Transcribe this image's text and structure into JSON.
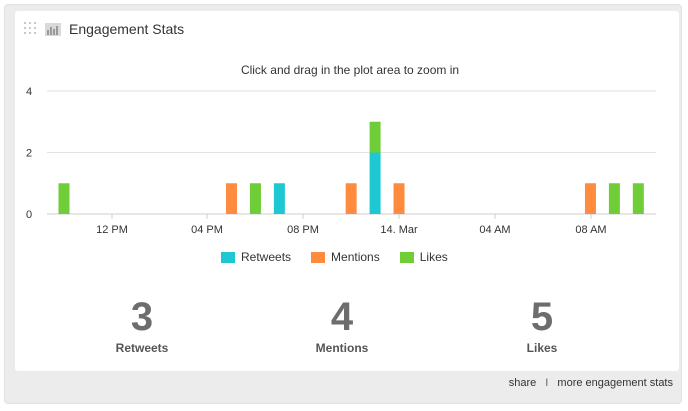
{
  "widget": {
    "title": "Engagement Stats",
    "hint": "Click and drag in the plot area to zoom in"
  },
  "chart_data": {
    "type": "bar",
    "stacked": true,
    "x_ticks": [
      "12 PM",
      "04 PM",
      "08 PM",
      "14. Mar",
      "04 AM",
      "08 AM"
    ],
    "y_ticks": [
      "4",
      "2",
      "0"
    ],
    "ylim": [
      0,
      4
    ],
    "grid": true,
    "legend_placement": "bottom-center",
    "series": [
      {
        "name": "Retweets",
        "color": "#1ec8d2",
        "points": [
          {
            "slot": 9,
            "value": 1
          },
          {
            "slot": 13,
            "value": 2
          }
        ]
      },
      {
        "name": "Mentions",
        "color": "#ff8c3e",
        "points": [
          {
            "slot": 7,
            "value": 1
          },
          {
            "slot": 12,
            "value": 1
          },
          {
            "slot": 14,
            "value": 1
          },
          {
            "slot": 22,
            "value": 1
          }
        ]
      },
      {
        "name": "Likes",
        "color": "#6fce37",
        "points": [
          {
            "slot": 0,
            "value": 1
          },
          {
            "slot": 8,
            "value": 1
          },
          {
            "slot": 13,
            "value": 1
          },
          {
            "slot": 23,
            "value": 1
          },
          {
            "slot": 24,
            "value": 1
          }
        ]
      }
    ]
  },
  "legend": [
    {
      "label": "Retweets",
      "color": "#1ec8d2"
    },
    {
      "label": "Mentions",
      "color": "#ff8c3e"
    },
    {
      "label": "Likes",
      "color": "#6fce37"
    }
  ],
  "stats": [
    {
      "value": "3",
      "label": "Retweets"
    },
    {
      "value": "4",
      "label": "Mentions"
    },
    {
      "value": "5",
      "label": "Likes"
    }
  ],
  "footer": {
    "share": "share",
    "separator": "I",
    "more": "more engagement stats"
  }
}
